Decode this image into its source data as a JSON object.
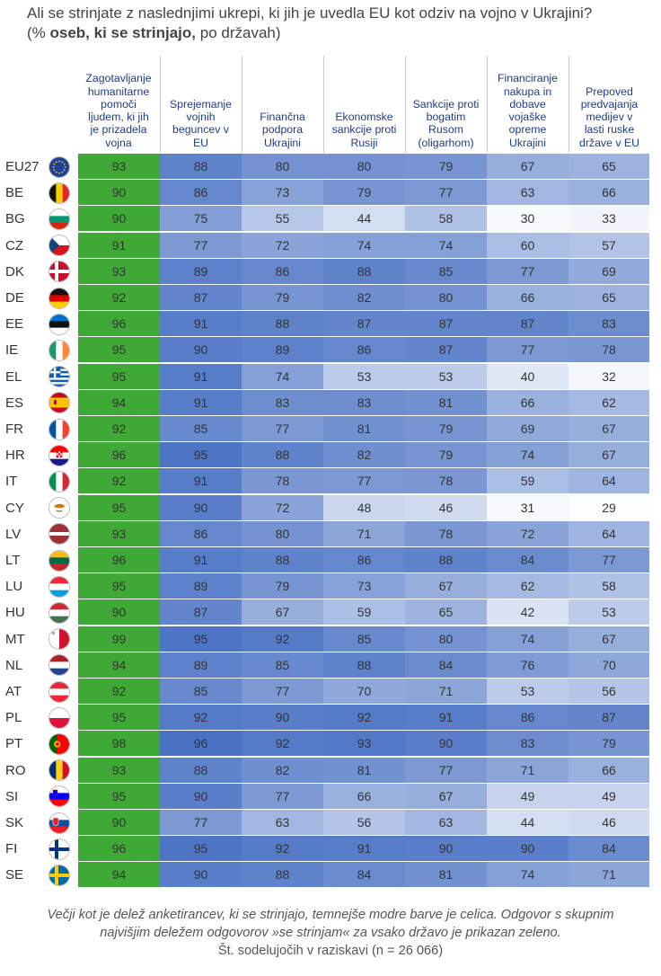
{
  "title_line1": "Ali se strinjate z naslednjimi ukrepi, ki jih je uvedla EU kot odziv na vojno v Ukrajini?",
  "title_line2_prefix": "(% ",
  "title_line2_bold": "oseb, ki se strinjajo,",
  "title_line2_suffix": " po državah)",
  "columns": [
    "Zagotavljanje humanitarne pomoči ljudem, ki jih je prizadela vojna",
    "Sprejemanje vojnih beguncev v EU",
    "Finančna podpora Ukrajini",
    "Ekonomske sankcije proti Rusiji",
    "Sankcije proti bogatim Rusom (oligarhom)",
    "Financiranje nakupa in dobave vojaške opreme Ukrajini",
    "Prepoved predvajanja medijev v lasti ruske države v EU"
  ],
  "column_lines": [
    [
      "Zagotavljanje",
      "humanitarne",
      "pomoči",
      "ljudem, ki jih",
      "je prizadela",
      "vojna"
    ],
    [
      "Sprejemanje",
      "vojnih",
      "beguncev v",
      "EU"
    ],
    [
      "Finančna",
      "podpora",
      "Ukrajini"
    ],
    [
      "Ekonomske",
      "sankcije proti",
      "Rusiji"
    ],
    [
      "Sankcije proti",
      "bogatim",
      "Rusom",
      "(oligarhom)"
    ],
    [
      "Financiranje",
      "nakupa in",
      "dobave",
      "vojaške",
      "opreme",
      "Ukrajini"
    ],
    [
      "Prepoved",
      "predvajanja",
      "medijev v",
      "lasti ruske",
      "države v EU"
    ]
  ],
  "colors": {
    "highest": "#3eaa35",
    "scale_dark": "#4a72c4",
    "scale_light": "#ffffff",
    "header_text": "#1f3c88"
  },
  "chart_data": {
    "type": "table",
    "rows": [
      {
        "code": "EU27",
        "flag": "eu-flag-icon",
        "values": [
          93,
          88,
          80,
          80,
          79,
          67,
          65
        ]
      },
      {
        "code": "BE",
        "flag": "belgium-flag-icon",
        "values": [
          90,
          86,
          73,
          79,
          77,
          63,
          66
        ]
      },
      {
        "code": "BG",
        "flag": "bulgaria-flag-icon",
        "values": [
          90,
          75,
          55,
          44,
          58,
          30,
          33
        ]
      },
      {
        "code": "CZ",
        "flag": "czechia-flag-icon",
        "values": [
          91,
          77,
          72,
          74,
          74,
          60,
          57
        ]
      },
      {
        "code": "DK",
        "flag": "denmark-flag-icon",
        "values": [
          93,
          89,
          86,
          88,
          85,
          77,
          69
        ]
      },
      {
        "code": "DE",
        "flag": "germany-flag-icon",
        "values": [
          92,
          87,
          79,
          82,
          80,
          66,
          65
        ]
      },
      {
        "code": "EE",
        "flag": "estonia-flag-icon",
        "values": [
          96,
          91,
          88,
          87,
          87,
          87,
          83
        ]
      },
      {
        "code": "IE",
        "flag": "ireland-flag-icon",
        "values": [
          95,
          90,
          89,
          86,
          87,
          77,
          78
        ]
      },
      {
        "code": "EL",
        "flag": "greece-flag-icon",
        "values": [
          95,
          91,
          74,
          53,
          53,
          40,
          32
        ]
      },
      {
        "code": "ES",
        "flag": "spain-flag-icon",
        "values": [
          94,
          91,
          83,
          83,
          81,
          66,
          62
        ]
      },
      {
        "code": "FR",
        "flag": "france-flag-icon",
        "values": [
          92,
          85,
          77,
          81,
          79,
          69,
          67
        ]
      },
      {
        "code": "HR",
        "flag": "croatia-flag-icon",
        "values": [
          96,
          95,
          88,
          82,
          79,
          74,
          67
        ]
      },
      {
        "code": "IT",
        "flag": "italy-flag-icon",
        "values": [
          92,
          91,
          78,
          77,
          78,
          59,
          64
        ]
      },
      {
        "code": "CY",
        "flag": "cyprus-flag-icon",
        "values": [
          95,
          90,
          72,
          48,
          46,
          31,
          29
        ]
      },
      {
        "code": "LV",
        "flag": "latvia-flag-icon",
        "values": [
          93,
          86,
          80,
          71,
          78,
          72,
          64
        ]
      },
      {
        "code": "LT",
        "flag": "lithuania-flag-icon",
        "values": [
          96,
          91,
          88,
          86,
          88,
          84,
          77
        ]
      },
      {
        "code": "LU",
        "flag": "luxembourg-flag-icon",
        "values": [
          95,
          89,
          79,
          73,
          67,
          62,
          58
        ]
      },
      {
        "code": "HU",
        "flag": "hungary-flag-icon",
        "values": [
          90,
          87,
          67,
          59,
          65,
          42,
          53
        ]
      },
      {
        "code": "MT",
        "flag": "malta-flag-icon",
        "values": [
          99,
          95,
          92,
          85,
          80,
          74,
          67
        ]
      },
      {
        "code": "NL",
        "flag": "netherlands-flag-icon",
        "values": [
          94,
          89,
          85,
          88,
          84,
          76,
          70
        ]
      },
      {
        "code": "AT",
        "flag": "austria-flag-icon",
        "values": [
          92,
          85,
          77,
          70,
          71,
          53,
          56
        ]
      },
      {
        "code": "PL",
        "flag": "poland-flag-icon",
        "values": [
          95,
          92,
          90,
          92,
          91,
          86,
          87
        ]
      },
      {
        "code": "PT",
        "flag": "portugal-flag-icon",
        "values": [
          98,
          96,
          92,
          93,
          90,
          83,
          79
        ]
      },
      {
        "code": "RO",
        "flag": "romania-flag-icon",
        "values": [
          93,
          88,
          82,
          81,
          77,
          71,
          66
        ]
      },
      {
        "code": "SI",
        "flag": "slovenia-flag-icon",
        "values": [
          95,
          90,
          77,
          66,
          67,
          49,
          49
        ]
      },
      {
        "code": "SK",
        "flag": "slovakia-flag-icon",
        "values": [
          90,
          77,
          63,
          56,
          63,
          44,
          46
        ]
      },
      {
        "code": "FI",
        "flag": "finland-flag-icon",
        "values": [
          96,
          95,
          92,
          91,
          90,
          90,
          84
        ]
      },
      {
        "code": "SE",
        "flag": "sweden-flag-icon",
        "values": [
          94,
          90,
          88,
          84,
          81,
          74,
          71
        ]
      }
    ],
    "highlight_column": 0
  },
  "footer_line1": "Večji kot je delež anketirancev, ki se strinjajo, temnejše modre barve je celica. Odgovor s skupnim",
  "footer_line2": "najvišjim deležem odgovorov »se strinjam« za vsako državo je prikazan zeleno.",
  "footer_line3": "Št. sodelujočih v raziskavi (n = 26 066)"
}
